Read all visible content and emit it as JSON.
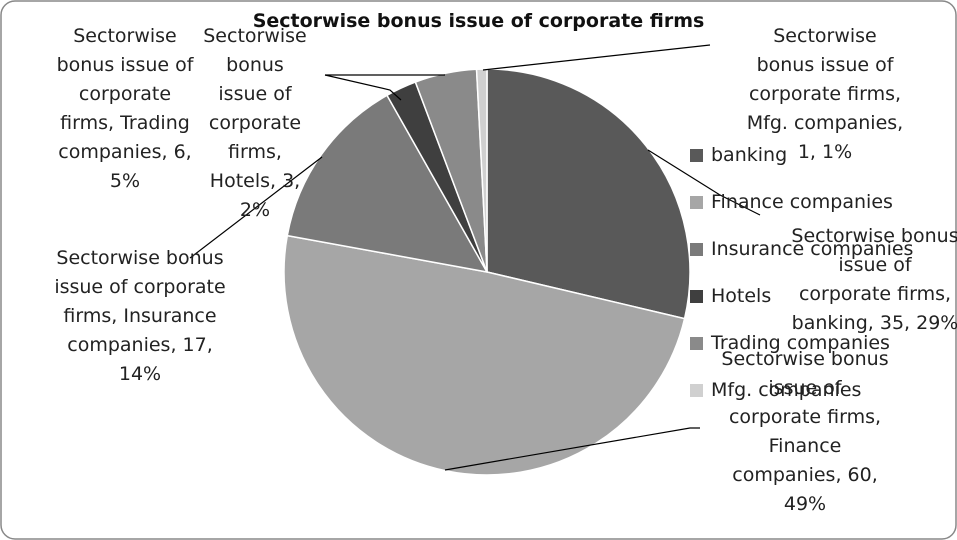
{
  "chart_data": {
    "type": "pie",
    "title": "Sectorwise bonus issue of corporate firms",
    "categories": [
      "banking",
      "Finance companies",
      "Insurance companies",
      "Hotels",
      "Trading companies",
      "Mfg. companies"
    ],
    "values": [
      35,
      60,
      17,
      3,
      6,
      1
    ],
    "value_labels": [
      "Sectorwise bonus issue of corporate firms, banking, 35, 29%",
      "Sectorwise bonus issue of corporate firms, Finance companies, 60, 49%",
      "Sectorwise bonus issue of corporate firms, Insurance companies, 17, 14%",
      "Sectorwise bonus issue of corporate firms, Hotels, 3, 2%",
      "Sectorwise bonus issue of corporate firms, Trading companies, 6, 5%",
      "Sectorwise bonus issue of corporate firms, Mfg. companies, 1, 1%"
    ],
    "colors": [
      "#595959",
      "#a6a6a6",
      "#7a7a7a",
      "#3f3f3f",
      "#8a8a8a",
      "#d0d0d0"
    ],
    "legend": "right"
  }
}
